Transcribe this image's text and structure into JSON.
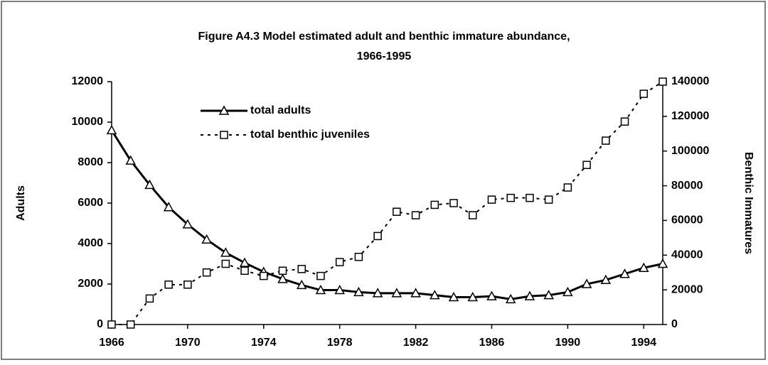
{
  "chart_data": {
    "type": "line",
    "title": [
      "Figure A4.3 Model estimated adult and benthic immature abundance,",
      "1966-1995"
    ],
    "ylabel": "Adults",
    "y2label": "Benthic Immatures",
    "x": [
      1966,
      1967,
      1968,
      1969,
      1970,
      1971,
      1972,
      1973,
      1974,
      1975,
      1976,
      1977,
      1978,
      1979,
      1980,
      1981,
      1982,
      1983,
      1984,
      1985,
      1986,
      1987,
      1988,
      1989,
      1990,
      1991,
      1992,
      1993,
      1994,
      1995
    ],
    "xlim": [
      1966,
      1995
    ],
    "xticks": [
      1966,
      1970,
      1974,
      1978,
      1982,
      1986,
      1990,
      1994
    ],
    "ylim": [
      0,
      12000
    ],
    "yticks": [
      0,
      2000,
      4000,
      6000,
      8000,
      10000,
      12000
    ],
    "y2lim": [
      0,
      140000
    ],
    "y2ticks": [
      0,
      20000,
      40000,
      60000,
      80000,
      100000,
      120000,
      140000
    ],
    "legend": "upper left",
    "series": [
      {
        "name": "total adults",
        "color": "#000000",
        "marker": "triangle",
        "dash": false,
        "values": [
          9600,
          8100,
          6900,
          5800,
          4950,
          4200,
          3550,
          3050,
          2600,
          2250,
          1950,
          1700,
          1700,
          1600,
          1550,
          1550,
          1550,
          1450,
          1350,
          1350,
          1400,
          1250,
          1400,
          1450,
          1600,
          2000,
          2200,
          2500,
          2800,
          3000
        ]
      },
      {
        "name": "total benthic juveniles",
        "color": "#000000",
        "marker": "square",
        "dash": true,
        "axis": "y2",
        "values": [
          0,
          0,
          15000,
          23000,
          23000,
          30000,
          35000,
          31000,
          28000,
          31000,
          32000,
          28000,
          36000,
          39000,
          51000,
          65000,
          63000,
          69000,
          70000,
          63000,
          72000,
          73000,
          73000,
          72000,
          79000,
          92000,
          106000,
          117000,
          133000,
          140000
        ]
      }
    ]
  }
}
